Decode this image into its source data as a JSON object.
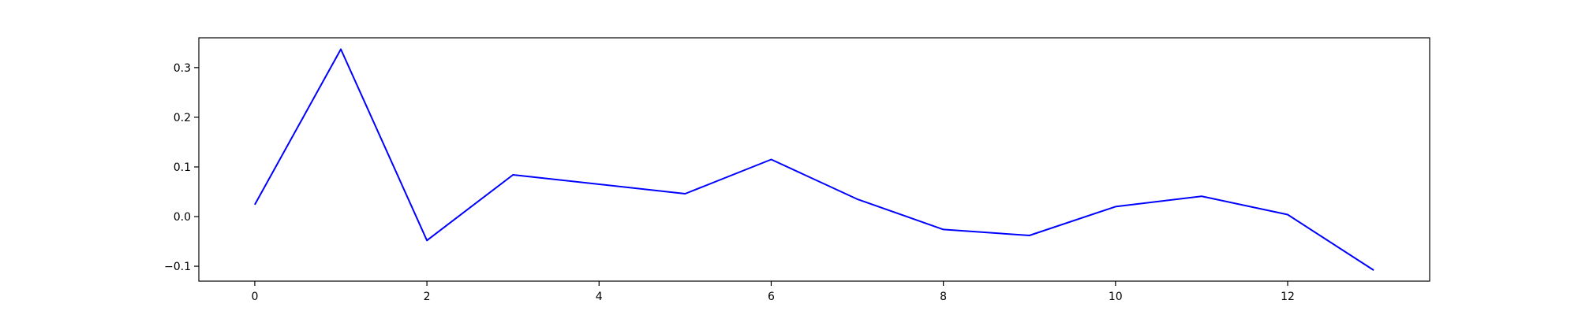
{
  "chart_data": {
    "type": "line",
    "title": "",
    "xlabel": "",
    "ylabel": "",
    "xlim": [
      -0.65,
      13.65
    ],
    "ylim": [
      -0.13,
      0.36
    ],
    "grid": false,
    "x_ticks": [
      0,
      2,
      4,
      6,
      8,
      10,
      12
    ],
    "y_ticks": [
      -0.1,
      0.0,
      0.1,
      0.2,
      0.3
    ],
    "x_tick_labels": [
      "0",
      "2",
      "4",
      "6",
      "8",
      "10",
      "12"
    ],
    "y_tick_labels": [
      "−0.1",
      "0.0",
      "0.1",
      "0.2",
      "0.3"
    ],
    "series": [
      {
        "color": "#0000ff",
        "x": [
          0,
          1,
          2,
          3,
          5,
          6,
          7,
          8,
          9,
          10,
          11,
          12,
          13
        ],
        "y": [
          0.024,
          0.337,
          -0.048,
          0.084,
          0.046,
          0.115,
          0.035,
          -0.026,
          -0.038,
          0.02,
          0.041,
          0.004,
          -0.108
        ]
      }
    ]
  }
}
